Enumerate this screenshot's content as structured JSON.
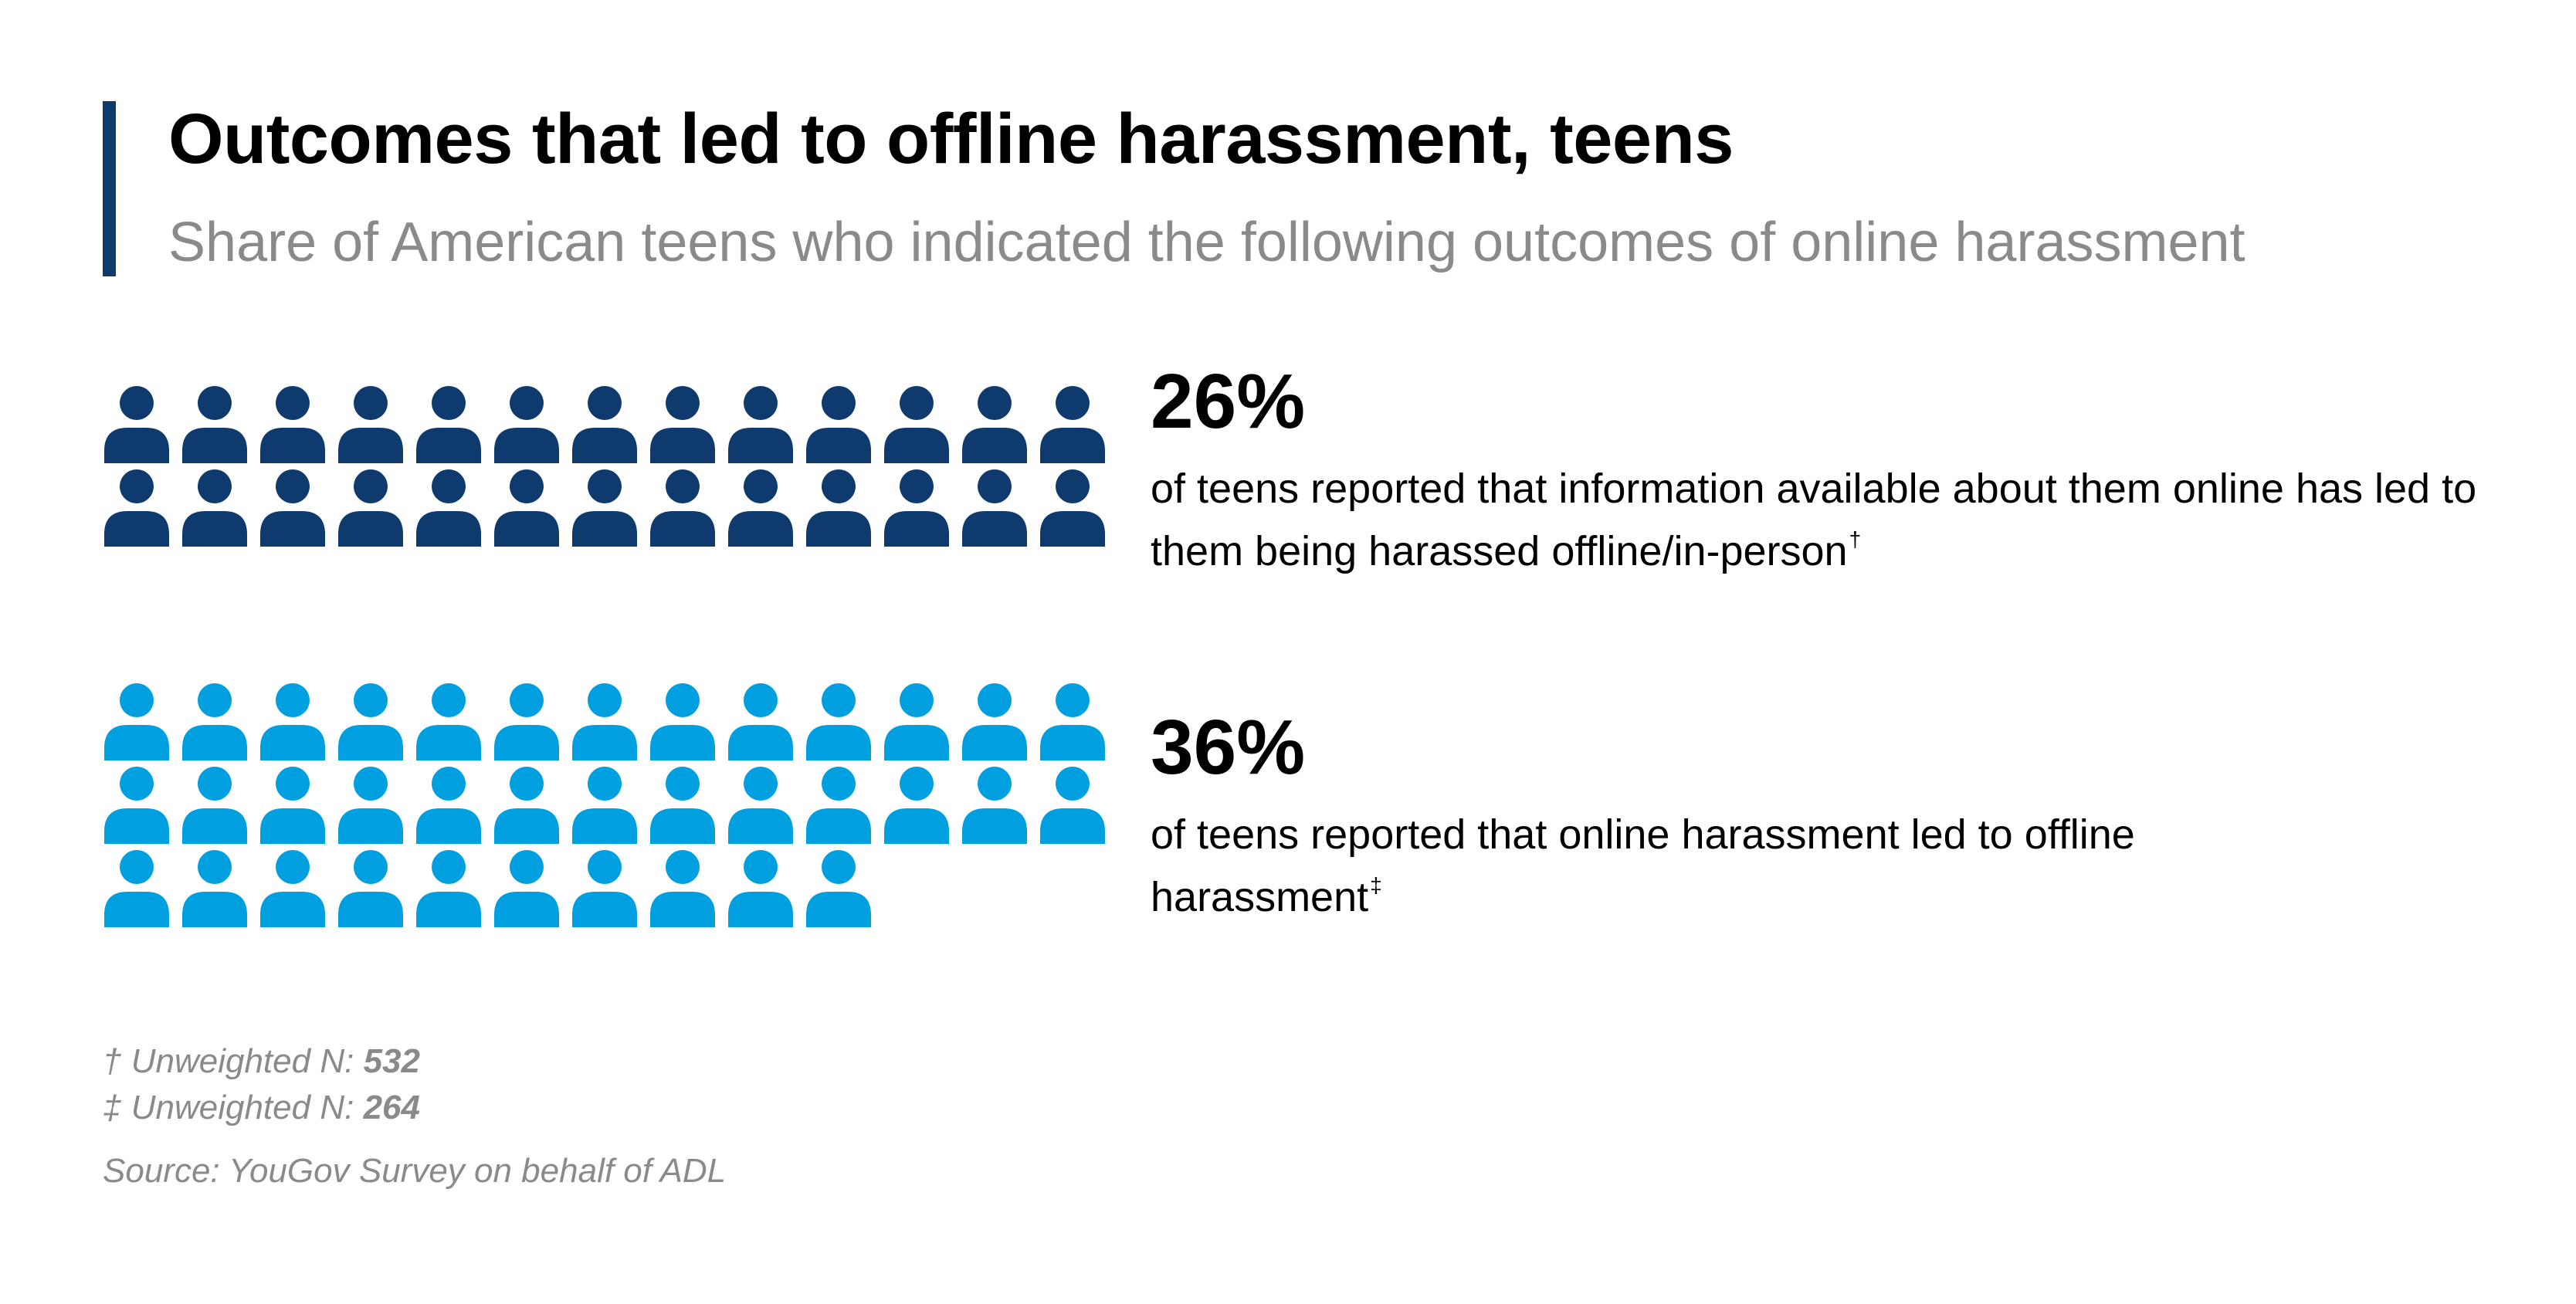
{
  "title": "Outcomes that led to offline harassment, teens",
  "subtitle": "Share of American teens who indicated the following outcomes of online harassment",
  "chart_data": {
    "type": "pictogram",
    "title": "Outcomes that led to offline harassment, teens",
    "subtitle": "Share of American teens who indicated the following outcomes of online harassment",
    "series": [
      {
        "value": 26,
        "value_label": "26%",
        "description": "of teens reported that information available about them online has led to them being harassed offline/in-person",
        "footnote_mark": "†",
        "icon_count": 26,
        "color": "#0f3a6e"
      },
      {
        "value": 36,
        "value_label": "36%",
        "description": "of teens reported that online harassment led to offline harassment",
        "footnote_mark": "‡",
        "icon_count": 36,
        "color": "#009fdf"
      }
    ],
    "icons_per_row": 13
  },
  "footnotes": [
    {
      "mark": "†",
      "label": "Unweighted N:",
      "value": "532"
    },
    {
      "mark": "‡",
      "label": "Unweighted N:",
      "value": "264"
    }
  ],
  "source": "Source: YouGov Survey on behalf of ADL"
}
